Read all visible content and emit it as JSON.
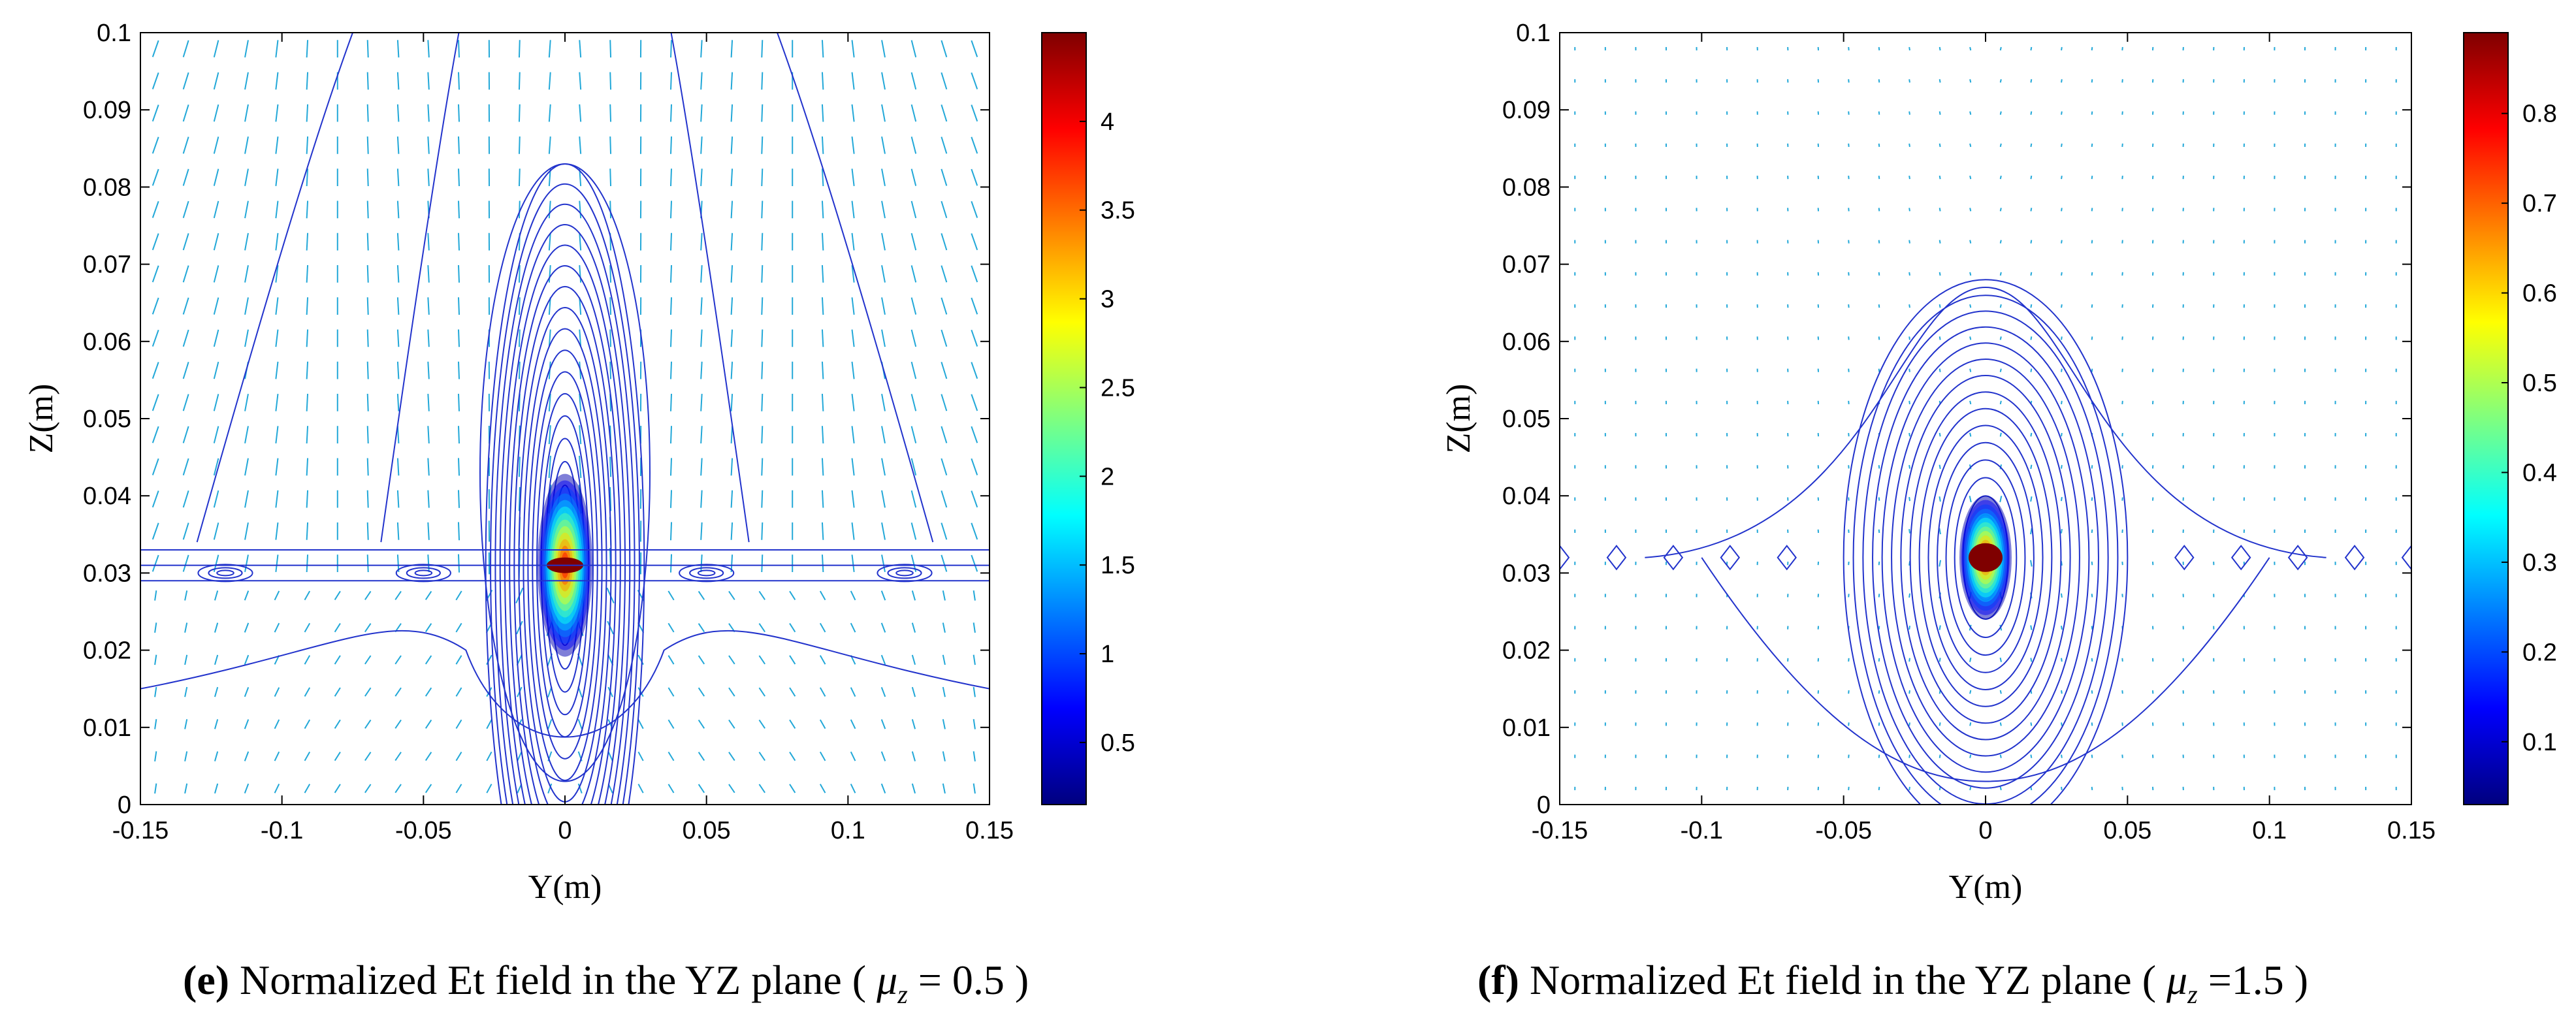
{
  "chart_data": [
    {
      "type": "contour-quiver",
      "panel": "e",
      "caption_lead": "Normalized Et field in the YZ plane (",
      "caption_mu": "μ",
      "caption_sub": "z",
      "caption_value": "= 0.5",
      "caption_close": ")",
      "xlabel": "Y(m)",
      "ylabel": "Z(m)",
      "xlim": [
        -0.15,
        0.15
      ],
      "ylim": [
        0,
        0.1
      ],
      "xticks": [
        "-0.15",
        "-0.1",
        "-0.05",
        "0",
        "0.05",
        "0.1",
        "0.15"
      ],
      "yticks": [
        "0",
        "0.01",
        "0.02",
        "0.03",
        "0.04",
        "0.05",
        "0.06",
        "0.07",
        "0.08",
        "0.09",
        "0.1"
      ],
      "colorbar_ticks": [
        "0.5",
        "1",
        "1.5",
        "2",
        "2.5",
        "3",
        "3.5",
        "4"
      ],
      "colorbar_range": [
        0.15,
        4.5
      ],
      "source_center": [
        0,
        0.031
      ],
      "peak_value": 4.4
    },
    {
      "type": "contour-quiver",
      "panel": "f",
      "caption_lead": "Normalized Et field in the YZ plane (",
      "caption_mu": "μ",
      "caption_sub": "z",
      "caption_value": "=1.5",
      "caption_close": ")",
      "xlabel": "Y(m)",
      "ylabel": "Z(m)",
      "xlim": [
        -0.15,
        0.15
      ],
      "ylim": [
        0,
        0.1
      ],
      "xticks": [
        "-0.15",
        "-0.1",
        "-0.05",
        "0",
        "0.05",
        "0.1",
        "0.15"
      ],
      "yticks": [
        "0",
        "0.01",
        "0.02",
        "0.03",
        "0.04",
        "0.05",
        "0.06",
        "0.07",
        "0.08",
        "0.09",
        "0.1"
      ],
      "colorbar_ticks": [
        "0.1",
        "0.2",
        "0.3",
        "0.4",
        "0.5",
        "0.6",
        "0.7",
        "0.8"
      ],
      "colorbar_range": [
        0.03,
        0.89
      ],
      "source_center": [
        0,
        0.032
      ],
      "peak_value": 0.88
    }
  ],
  "colors": {
    "contour": "#2233cc",
    "arrow": "#22a8d8",
    "colormap": [
      "#00007f",
      "#0000ff",
      "#007fff",
      "#00ffff",
      "#7fff7f",
      "#ffff00",
      "#ff7f00",
      "#ff0000",
      "#7f0000"
    ]
  }
}
